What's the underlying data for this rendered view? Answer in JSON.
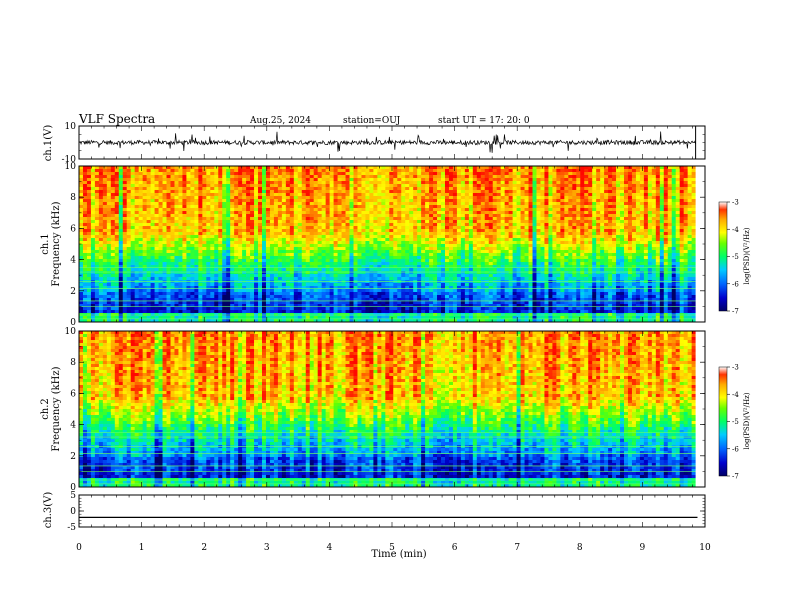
{
  "header": {
    "title": "VLF Spectra",
    "date": "Aug.25, 2024",
    "station": "station=OUJ",
    "start": "start  UT  =   17: 20: 0"
  },
  "chart_data": [
    {
      "type": "line",
      "name": "ch1-waveform",
      "ylabel": "ch.1(V)",
      "ylim": [
        -10,
        10
      ],
      "yticks": [
        "10",
        "-10"
      ],
      "xlim": [
        0,
        10
      ],
      "baseline": 0
    },
    {
      "type": "heatmap",
      "name": "ch1-spectrogram",
      "ylabel": "ch.1\nFrequency (kHz)",
      "ylabel_top": "ch.1",
      "ylabel_main": "Frequency  (kHz)",
      "ylim": [
        0,
        10
      ],
      "yticks": [
        "0",
        "2",
        "4",
        "6",
        "8",
        "10"
      ],
      "xlim": [
        0,
        10
      ],
      "data_end_min": 9.85,
      "colorbar": {
        "label": "log(PSD)(V²/Hz)",
        "ticks": [
          "-3",
          "-4",
          "-5",
          "-6",
          "-7"
        ],
        "range": [
          -7,
          -3
        ]
      }
    },
    {
      "type": "heatmap",
      "name": "ch2-spectrogram",
      "ylabel_top": "ch.2",
      "ylabel_main": "Frequency  (kHz)",
      "ylim": [
        0,
        10
      ],
      "yticks": [
        "0",
        "2",
        "4",
        "6",
        "8",
        "10"
      ],
      "xlim": [
        0,
        10
      ],
      "data_end_min": 9.85,
      "colorbar": {
        "label": "log(PSD)(V²/Hz)",
        "ticks": [
          "-3",
          "-4",
          "-5",
          "-6",
          "-7"
        ],
        "range": [
          -7,
          -3
        ]
      }
    },
    {
      "type": "line",
      "name": "ch3-waveform",
      "ylabel": "ch.3(V)",
      "ylim": [
        -5,
        5
      ],
      "yticks": [
        "5",
        "0",
        "-5"
      ],
      "xlim": [
        0,
        10
      ],
      "baseline": -2
    }
  ],
  "xaxis": {
    "label": "Time  (min)",
    "ticks": [
      "0",
      "1",
      "2",
      "3",
      "4",
      "5",
      "6",
      "7",
      "8",
      "9",
      "10"
    ]
  },
  "colors": {
    "scale": [
      "#000066",
      "#0000cc",
      "#0066ff",
      "#00ccff",
      "#00ff99",
      "#66ff00",
      "#ffff00",
      "#ffaa00",
      "#ff3300",
      "#ff0000"
    ]
  }
}
